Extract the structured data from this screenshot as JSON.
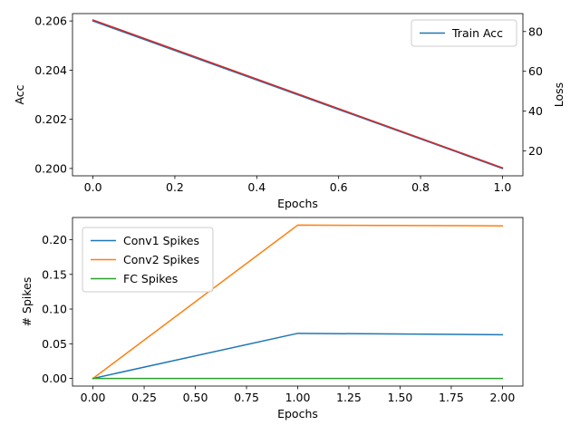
{
  "chart_data": [
    {
      "type": "line",
      "xlabel": "Epochs",
      "ylabel": "Acc",
      "y2label": "Loss",
      "xlim": [
        -0.05,
        1.05
      ],
      "ylim": [
        0.1997,
        0.2063
      ],
      "y2lim": [
        7.5,
        89
      ],
      "xticks": [
        0.0,
        0.2,
        0.4,
        0.6,
        0.8,
        1.0
      ],
      "xtick_labels": [
        "0.0",
        "0.2",
        "0.4",
        "0.6",
        "0.8",
        "1.0"
      ],
      "yticks": [
        0.2,
        0.202,
        0.204,
        0.206
      ],
      "ytick_labels": [
        "0.200",
        "0.202",
        "0.204",
        "0.206"
      ],
      "y2ticks": [
        20,
        40,
        60,
        80
      ],
      "y2tick_labels": [
        "20",
        "40",
        "60",
        "80"
      ],
      "legend_loc": "upper right",
      "grid": false,
      "series": [
        {
          "name": "Train Acc",
          "axis": "left",
          "color": "#1f77b4",
          "x": [
            0,
            1
          ],
          "y": [
            0.206,
            0.2
          ],
          "in_legend": true
        },
        {
          "axis": "right",
          "color": "#d62728",
          "x": [
            0,
            1
          ],
          "y": [
            85.8,
            11.5
          ],
          "in_legend": false
        }
      ]
    },
    {
      "type": "line",
      "xlabel": "Epochs",
      "ylabel": "# Spikes",
      "xlim": [
        -0.1,
        2.1
      ],
      "ylim": [
        -0.011,
        0.232
      ],
      "xticks": [
        0.0,
        0.25,
        0.5,
        0.75,
        1.0,
        1.25,
        1.5,
        1.75,
        2.0
      ],
      "xtick_labels": [
        "0.00",
        "0.25",
        "0.50",
        "0.75",
        "1.00",
        "1.25",
        "1.50",
        "1.75",
        "2.00"
      ],
      "yticks": [
        0.0,
        0.05,
        0.1,
        0.15,
        0.2
      ],
      "ytick_labels": [
        "0.00",
        "0.05",
        "0.10",
        "0.15",
        "0.20"
      ],
      "legend_loc": "upper left",
      "grid": false,
      "series": [
        {
          "name": "Conv1 Spikes",
          "color": "#1f77b4",
          "x": [
            0,
            1,
            2
          ],
          "y": [
            0.0,
            0.065,
            0.063
          ],
          "in_legend": true
        },
        {
          "name": "Conv2 Spikes",
          "color": "#ff7f0e",
          "x": [
            0,
            1,
            2
          ],
          "y": [
            0.0,
            0.221,
            0.22
          ],
          "in_legend": true
        },
        {
          "name": "FC Spikes",
          "color": "#2ca02c",
          "x": [
            0,
            1,
            2
          ],
          "y": [
            0.0,
            0.0,
            0.0
          ],
          "in_legend": true
        }
      ]
    }
  ]
}
